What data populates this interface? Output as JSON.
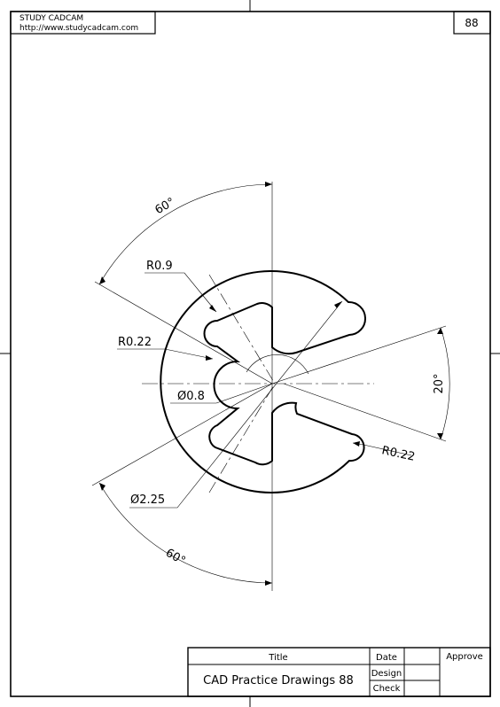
{
  "header": {
    "brand": "STUDY CADCAM",
    "url": "http://www.studycadcam.com",
    "sheet_number": "88"
  },
  "dimensions": {
    "angle_top": "60°",
    "angle_bottom": "60°",
    "angle_right": "20°",
    "radius_lobe": "R0.9",
    "radius_fillet_left": "R0.22",
    "radius_fillet_right": "R0.22",
    "dia_inner": "Ø0.8",
    "dia_outer": "Ø2.25"
  },
  "title_block": {
    "title_label": "Title",
    "title_value": "CAD Practice Drawings 88",
    "date_label": "Date",
    "approve_label": "Approve",
    "design_label": "Design",
    "check_label": "Check"
  }
}
